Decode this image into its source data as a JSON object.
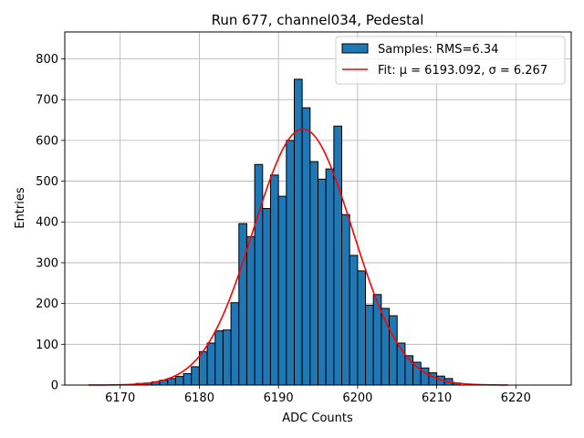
{
  "chart_data": {
    "type": "bar",
    "title": "Run 677, channel034, Pedestal",
    "xlabel": "ADC Counts",
    "ylabel": "Entries",
    "xlim": [
      6163,
      6227
    ],
    "ylim": [
      0,
      866
    ],
    "xticks": [
      6170,
      6180,
      6190,
      6200,
      6210,
      6220
    ],
    "yticks": [
      0,
      100,
      200,
      300,
      400,
      500,
      600,
      700,
      800
    ],
    "grid": true,
    "legend_position": "top-right",
    "colors": {
      "bars": "#1f77b4",
      "bar_edge": "#000000",
      "fit": "#ff0000",
      "grid": "#b0b0b0"
    },
    "histogram": {
      "name": "Samples: RMS=6.34",
      "bin_width": 1,
      "bins": [
        {
          "x": 6172,
          "count": 4
        },
        {
          "x": 6173,
          "count": 5
        },
        {
          "x": 6174,
          "count": 8
        },
        {
          "x": 6175,
          "count": 12
        },
        {
          "x": 6176,
          "count": 16
        },
        {
          "x": 6177,
          "count": 21
        },
        {
          "x": 6178,
          "count": 28
        },
        {
          "x": 6179,
          "count": 45
        },
        {
          "x": 6180,
          "count": 82
        },
        {
          "x": 6181,
          "count": 103
        },
        {
          "x": 6182,
          "count": 133
        },
        {
          "x": 6183,
          "count": 135
        },
        {
          "x": 6184,
          "count": 202
        },
        {
          "x": 6185,
          "count": 396
        },
        {
          "x": 6186,
          "count": 364
        },
        {
          "x": 6187,
          "count": 541
        },
        {
          "x": 6188,
          "count": 433
        },
        {
          "x": 6189,
          "count": 515
        },
        {
          "x": 6190,
          "count": 463
        },
        {
          "x": 6191,
          "count": 600
        },
        {
          "x": 6192,
          "count": 750
        },
        {
          "x": 6193,
          "count": 680
        },
        {
          "x": 6194,
          "count": 548
        },
        {
          "x": 6195,
          "count": 505
        },
        {
          "x": 6196,
          "count": 530
        },
        {
          "x": 6197,
          "count": 635
        },
        {
          "x": 6198,
          "count": 418
        },
        {
          "x": 6199,
          "count": 318
        },
        {
          "x": 6200,
          "count": 280
        },
        {
          "x": 6201,
          "count": 196
        },
        {
          "x": 6202,
          "count": 222
        },
        {
          "x": 6203,
          "count": 188
        },
        {
          "x": 6204,
          "count": 170
        },
        {
          "x": 6205,
          "count": 103
        },
        {
          "x": 6206,
          "count": 72
        },
        {
          "x": 6207,
          "count": 56
        },
        {
          "x": 6208,
          "count": 42
        },
        {
          "x": 6209,
          "count": 30
        },
        {
          "x": 6210,
          "count": 22
        },
        {
          "x": 6211,
          "count": 16
        },
        {
          "x": 6212,
          "count": 5
        }
      ]
    },
    "fit": {
      "name": "Fit: μ = 6193.092, σ = 6.267",
      "mu": 6193.092,
      "sigma": 6.267,
      "amplitude": 628,
      "x_range": [
        6166,
        6219
      ]
    }
  }
}
